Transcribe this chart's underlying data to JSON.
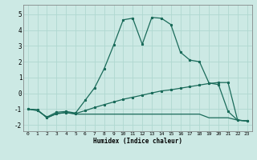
{
  "xlabel": "Humidex (Indice chaleur)",
  "ylabel": "",
  "bg_color": "#cce9e4",
  "grid_color": "#b0d8d0",
  "line_color": "#1a6b5a",
  "xlim": [
    -0.5,
    23.5
  ],
  "ylim": [
    -2.4,
    5.6
  ],
  "xticks": [
    0,
    1,
    2,
    3,
    4,
    5,
    6,
    7,
    8,
    9,
    10,
    11,
    12,
    13,
    14,
    15,
    16,
    17,
    18,
    19,
    20,
    21,
    22,
    23
  ],
  "yticks": [
    -2,
    -1,
    0,
    1,
    2,
    3,
    4,
    5
  ],
  "line1_x": [
    0,
    1,
    2,
    3,
    4,
    5,
    6,
    7,
    8,
    9,
    10,
    11,
    12,
    13,
    14,
    15,
    16,
    17,
    18,
    19,
    20,
    21,
    22,
    23
  ],
  "line1_y": [
    -1.0,
    -1.1,
    -1.5,
    -1.2,
    -1.15,
    -1.25,
    -0.45,
    0.35,
    1.55,
    3.05,
    4.65,
    4.75,
    3.1,
    4.8,
    4.75,
    4.35,
    2.6,
    2.1,
    2.0,
    0.65,
    0.55,
    -1.15,
    -1.7,
    -1.75
  ],
  "line2_x": [
    0,
    1,
    2,
    3,
    4,
    5,
    6,
    7,
    8,
    9,
    10,
    11,
    12,
    13,
    14,
    15,
    16,
    17,
    18,
    19,
    20,
    21,
    22,
    23
  ],
  "line2_y": [
    -1.0,
    -1.05,
    -1.55,
    -1.28,
    -1.22,
    -1.28,
    -1.1,
    -0.9,
    -0.72,
    -0.55,
    -0.38,
    -0.25,
    -0.12,
    0.02,
    0.15,
    0.22,
    0.32,
    0.42,
    0.52,
    0.62,
    0.68,
    0.68,
    -1.7,
    -1.75
  ],
  "line3_x": [
    0,
    1,
    2,
    3,
    4,
    5,
    6,
    7,
    8,
    9,
    10,
    11,
    12,
    13,
    14,
    15,
    16,
    17,
    18,
    19,
    20,
    21,
    22,
    23
  ],
  "line3_y": [
    -1.0,
    -1.05,
    -1.55,
    -1.3,
    -1.22,
    -1.32,
    -1.32,
    -1.32,
    -1.32,
    -1.32,
    -1.32,
    -1.32,
    -1.32,
    -1.32,
    -1.32,
    -1.32,
    -1.32,
    -1.32,
    -1.32,
    -1.55,
    -1.55,
    -1.55,
    -1.7,
    -1.75
  ]
}
